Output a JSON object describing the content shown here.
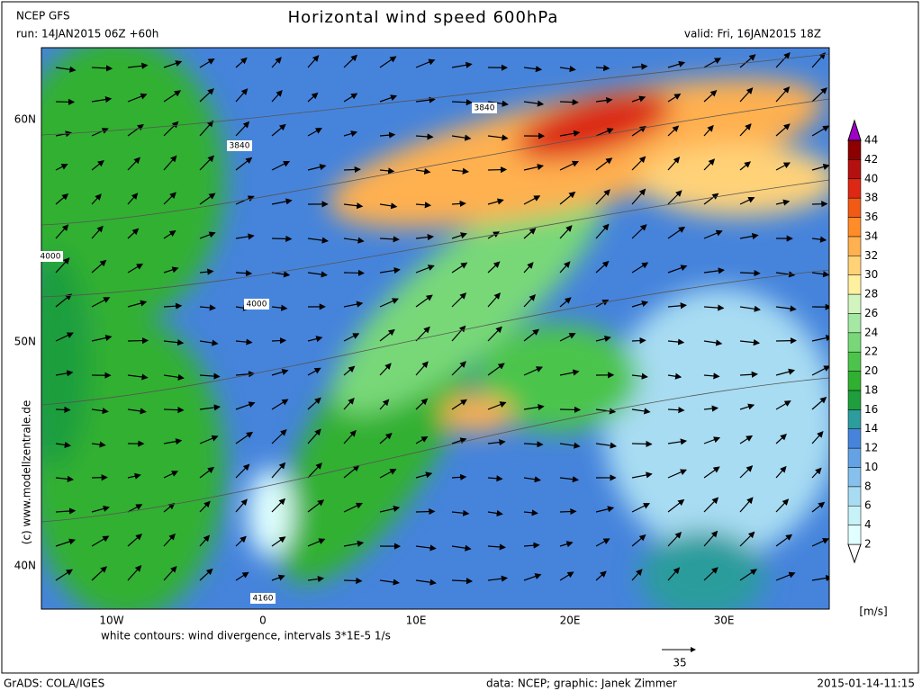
{
  "header": {
    "model": "NCEP GFS",
    "run": "run: 14JAN2015 06Z +60h",
    "title": "Horizontal wind speed 600hPa",
    "valid": "valid: Fri, 16JAN2015 18Z"
  },
  "map": {
    "lat_labels": [
      "60N",
      "50N",
      "40N"
    ],
    "lon_labels": [
      "10W",
      "0",
      "10E",
      "20E",
      "30E"
    ],
    "contour_labels": [
      "3840",
      "3840",
      "4000",
      "4000",
      "4160"
    ],
    "copyright": "(c) www.modellzentrale.de",
    "note": "white contours: wind divergence, intervals 3*1E-5 1/s",
    "vector_reference": "35"
  },
  "colorbar": {
    "labels": [
      "2",
      "4",
      "6",
      "8",
      "10",
      "12",
      "14",
      "16",
      "18",
      "20",
      "22",
      "24",
      "26",
      "28",
      "30",
      "32",
      "34",
      "36",
      "38",
      "40",
      "42",
      "44"
    ],
    "colors": [
      "#ffffff",
      "#e1ffff",
      "#c6f2f8",
      "#a8dcf2",
      "#86c0ec",
      "#64a2e6",
      "#4684dc",
      "#2c9c9c",
      "#1e9e3c",
      "#30b030",
      "#4cc44c",
      "#78d878",
      "#a4e8a4",
      "#d2f5c0",
      "#fff0a0",
      "#ffd278",
      "#ffb050",
      "#ff8c28",
      "#f05a14",
      "#dc2814",
      "#b41010",
      "#8c0000",
      "#a000c8"
    ],
    "unit": "[m/s]"
  },
  "footer": {
    "left": "GrADS: COLA/IGES",
    "center": "data: NCEP; graphic: Janek Zimmer",
    "right": "2015-01-14-11:15"
  }
}
